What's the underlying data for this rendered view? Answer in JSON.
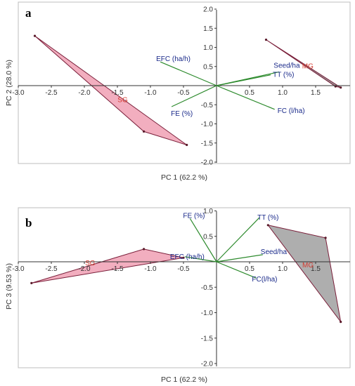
{
  "chart_data": [
    {
      "type": "scatter",
      "panel": "a",
      "xlabel": "PC 1 (62.2 %)",
      "ylabel": "PC 2 (28.0 %)",
      "xlim": [
        -3.0,
        2.0
      ],
      "ylim": [
        -2.0,
        2.0
      ],
      "xticks": [
        "-3.0",
        "-2.5",
        "-2.0",
        "-1.5",
        "-1.0",
        "-0.5",
        "0.5",
        "1.0",
        "1.5"
      ],
      "yticks": [
        "2.0",
        "1.5",
        "1.0",
        "0.5",
        "-0.5",
        "-1.0",
        "-1.5",
        "-2.0"
      ],
      "loadings": [
        {
          "name": "EFC (ha/h)",
          "x": -0.85,
          "y": 0.62
        },
        {
          "name": "Seed/ha",
          "x": 0.95,
          "y": 0.36
        },
        {
          "name": "TT (%)",
          "x": 0.82,
          "y": 0.28
        },
        {
          "name": "FE (%)",
          "x": -0.68,
          "y": -0.55
        },
        {
          "name": "FC  (l/ha)",
          "x": 0.88,
          "y": -0.62
        }
      ],
      "groups": [
        {
          "name": "SG",
          "color": "#d43a2f",
          "fill": "#f0a0b4",
          "points": [
            [
              -2.75,
              1.3
            ],
            [
              -1.1,
              -1.2
            ],
            [
              -0.45,
              -1.55
            ]
          ]
        },
        {
          "name": "MG",
          "color": "#d43a2f",
          "fill": "#888888",
          "points": [
            [
              0.75,
              1.2
            ],
            [
              1.88,
              -0.05
            ],
            [
              1.8,
              -0.02
            ]
          ]
        }
      ]
    },
    {
      "type": "scatter",
      "panel": "b",
      "xlabel": "PC 1 (62.2 %)",
      "ylabel": "PC 3 (9.53 %)",
      "xlim": [
        -3.0,
        2.0
      ],
      "ylim": [
        -2.0,
        1.0
      ],
      "xticks": [
        "-3.0",
        "-2.5",
        "-2.0",
        "-1.5",
        "-1.0",
        "-0.5",
        "0.5",
        "1.0",
        "1.5"
      ],
      "yticks": [
        "1.0",
        "0.5",
        "-0.5",
        "-1.0",
        "-1.5",
        "-2.0"
      ],
      "loadings": [
        {
          "name": "FE (%)",
          "x": -0.4,
          "y": 0.85
        },
        {
          "name": "TT (%)",
          "x": 0.65,
          "y": 0.87
        },
        {
          "name": "EFC (ha/h)",
          "x": -0.48,
          "y": 0.1
        },
        {
          "name": "Seed/ha",
          "x": 0.7,
          "y": 0.14
        },
        {
          "name": "FC(l/ha)",
          "x": 0.6,
          "y": -0.32
        }
      ],
      "groups": [
        {
          "name": "SG",
          "color": "#d43a2f",
          "fill": "#f0a0b4",
          "points": [
            [
              -2.8,
              -0.42
            ],
            [
              -1.1,
              0.25
            ],
            [
              -0.5,
              0.08
            ]
          ]
        },
        {
          "name": "MG",
          "color": "#d43a2f",
          "fill": "#a0a0a0",
          "points": [
            [
              0.78,
              0.72
            ],
            [
              1.65,
              0.47
            ],
            [
              1.88,
              -1.18
            ]
          ]
        }
      ]
    }
  ]
}
